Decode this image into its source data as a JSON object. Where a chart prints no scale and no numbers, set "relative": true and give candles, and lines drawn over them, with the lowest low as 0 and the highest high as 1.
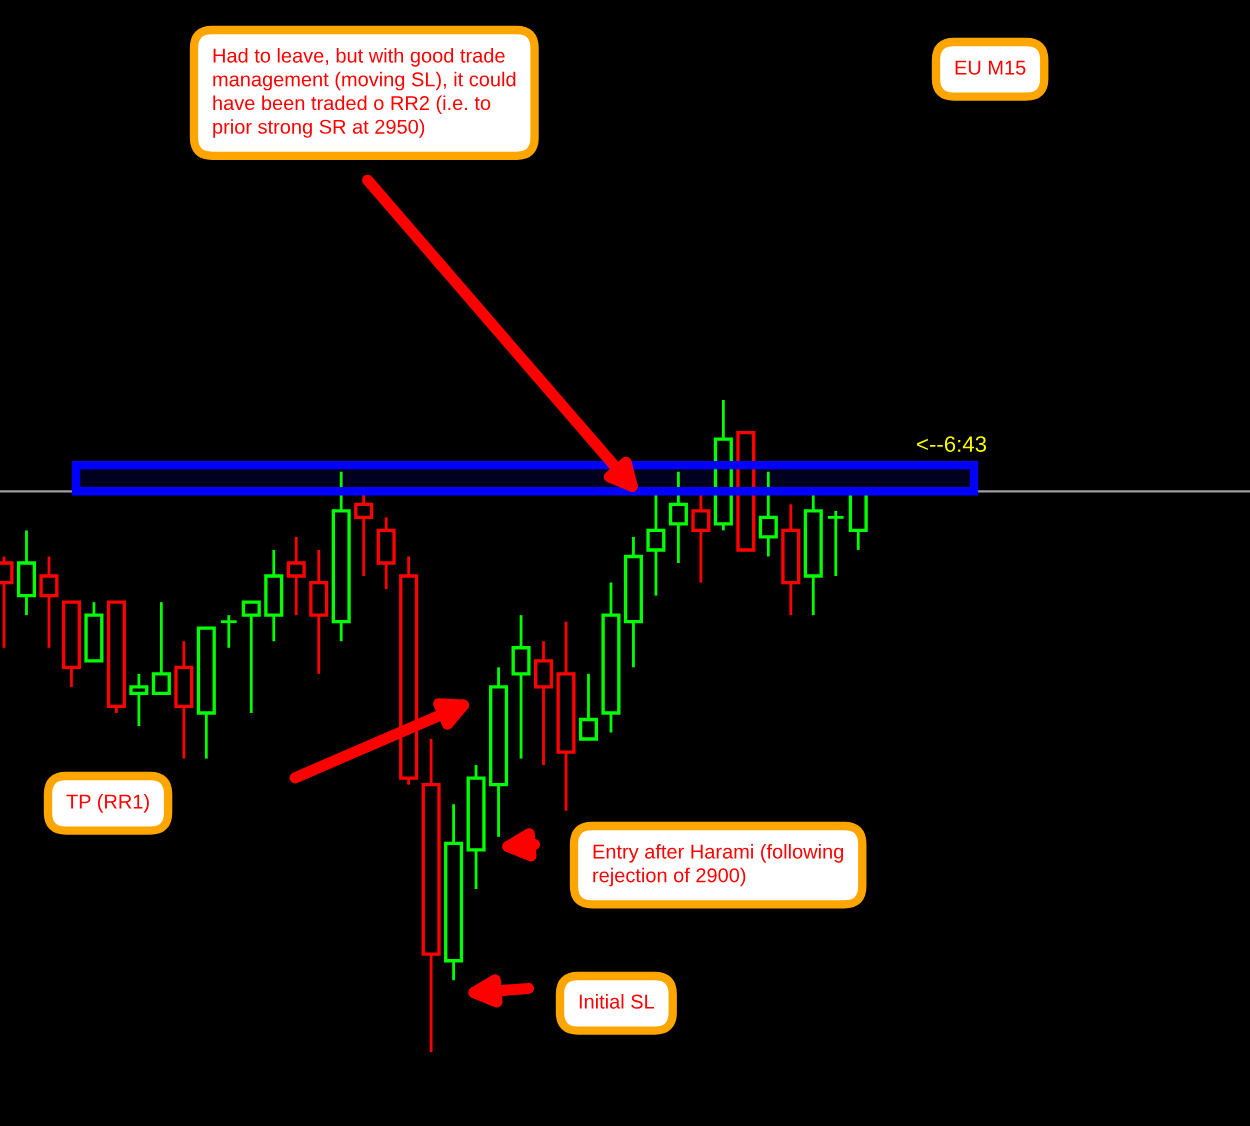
{
  "chart_data": {
    "type": "candlestick",
    "relative": true,
    "categories": [
      null,
      null,
      null,
      null,
      null,
      null,
      null,
      null,
      null,
      null,
      null,
      null,
      null,
      null,
      null,
      null,
      null,
      null,
      null,
      null,
      null,
      null,
      null,
      null,
      null,
      null,
      null,
      null,
      null,
      null,
      null,
      null,
      null,
      null,
      null,
      null,
      null,
      null,
      null
    ],
    "ohlc": [
      [
        0.75,
        0.76,
        0.62,
        0.72
      ],
      [
        0.7,
        0.8,
        0.67,
        0.75
      ],
      [
        0.73,
        0.76,
        0.62,
        0.7
      ],
      [
        0.69,
        0.69,
        0.56,
        0.59
      ],
      [
        0.6,
        0.69,
        0.6,
        0.67
      ],
      [
        0.69,
        0.69,
        0.52,
        0.53
      ],
      [
        0.55,
        0.58,
        0.5,
        0.56
      ],
      [
        0.55,
        0.69,
        0.55,
        0.58
      ],
      [
        0.59,
        0.63,
        0.45,
        0.53
      ],
      [
        0.52,
        0.65,
        0.45,
        0.65
      ],
      [
        0.66,
        0.67,
        0.62,
        0.66
      ],
      [
        0.67,
        0.69,
        0.52,
        0.69
      ],
      [
        0.67,
        0.77,
        0.63,
        0.73
      ],
      [
        0.75,
        0.79,
        0.67,
        0.73
      ],
      [
        0.72,
        0.77,
        0.58,
        0.67
      ],
      [
        0.66,
        0.89,
        0.63,
        0.83
      ],
      [
        0.84,
        0.86,
        0.73,
        0.82
      ],
      [
        0.8,
        0.82,
        0.71,
        0.75
      ],
      [
        0.73,
        0.76,
        0.41,
        0.42
      ],
      [
        0.41,
        0.48,
        0,
        0.15
      ],
      [
        0.14,
        0.38,
        0.11,
        0.32
      ],
      [
        0.31,
        0.44,
        0.25,
        0.42
      ],
      [
        0.41,
        0.59,
        0.33,
        0.56
      ],
      [
        0.58,
        0.67,
        0.45,
        0.62
      ],
      [
        0.6,
        0.63,
        0.44,
        0.56
      ],
      [
        0.58,
        0.66,
        0.37,
        0.46
      ],
      [
        0.48,
        0.58,
        0.48,
        0.51
      ],
      [
        0.52,
        0.72,
        0.49,
        0.67
      ],
      [
        0.66,
        0.79,
        0.59,
        0.76
      ],
      [
        0.77,
        0.86,
        0.7,
        0.8
      ],
      [
        0.81,
        0.89,
        0.75,
        0.84
      ],
      [
        0.83,
        0.86,
        0.72,
        0.8
      ],
      [
        0.81,
        1.0,
        0.8,
        0.94
      ],
      [
        0.95,
        0.95,
        0.77,
        0.77
      ],
      [
        0.79,
        0.89,
        0.76,
        0.82
      ],
      [
        0.8,
        0.84,
        0.67,
        0.72
      ],
      [
        0.73,
        0.86,
        0.67,
        0.83
      ],
      [
        0.82,
        0.83,
        0.73,
        0.82
      ],
      [
        0.8,
        0.86,
        0.77,
        0.86
      ]
    ],
    "colors": [
      "#ff0000",
      "#00ff00",
      "#ff0000",
      "#ff0000",
      "#00ff00",
      "#ff0000",
      "#00ff00",
      "#00ff00",
      "#ff0000",
      "#00ff00",
      "#00ff00",
      "#00ff00",
      "#00ff00",
      "#ff0000",
      "#ff0000",
      "#00ff00",
      "#ff0000",
      "#ff0000",
      "#ff0000",
      "#ff0000",
      "#00ff00",
      "#00ff00",
      "#00ff00",
      "#00ff00",
      "#ff0000",
      "#ff0000",
      "#00ff00",
      "#00ff00",
      "#00ff00",
      "#00ff00",
      "#00ff00",
      "#ff0000",
      "#00ff00",
      "#ff0000",
      "#00ff00",
      "#ff0000",
      "#00ff00",
      "#00ff00",
      "#00ff00"
    ],
    "bands": [
      {
        "axis": "y",
        "from": 0.86,
        "to": 0.9,
        "color": "#0000ff"
      }
    ],
    "ref_lines": [
      {
        "axis": "y",
        "value": 0.86,
        "color": "#a0a0a0"
      }
    ],
    "annotations": [
      "Had to leave, but with good trade\nmanagement (moving SL), it could\nhave been traded o RR2 (i.e. to\nprior strong SR at 2950)",
      "EU M15",
      "TP (RR1)",
      "Entry after Harami (following\nrejection of 2900)",
      "Initial SL",
      "<--6:43"
    ]
  }
}
